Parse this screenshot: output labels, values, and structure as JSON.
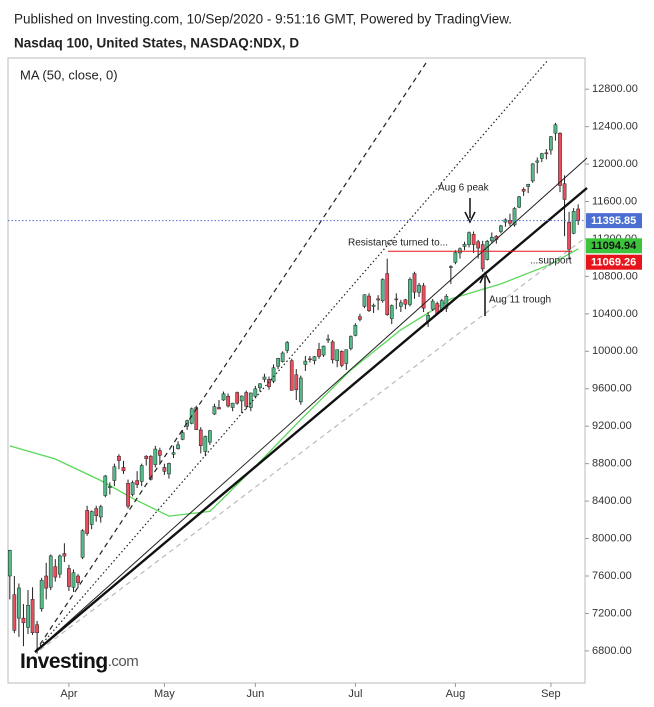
{
  "chart_data": {
    "type": "candlestick",
    "published": "Published on Investing.com, 10/Sep/2020 - 9:51:16 GMT, Powered by TradingView.",
    "title": "Nasdaq 100, United States, NASDAQ:NDX, D",
    "logo_main": "Investing",
    "logo_suffix": ".com",
    "up_color": "#53b987",
    "down_color": "#eb4d5c",
    "xlim": [
      -0.4,
      126.5
    ],
    "xticks": [
      {
        "value": 13,
        "label": "Apr"
      },
      {
        "value": 34,
        "label": "May"
      },
      {
        "value": 54,
        "label": "Jun"
      },
      {
        "value": 76,
        "label": "Jul"
      },
      {
        "value": 98,
        "label": "Aug"
      },
      {
        "value": 119,
        "label": "Sep"
      }
    ],
    "ylim": [
      6457,
      13133
    ],
    "yticks": [
      {
        "value": 6800,
        "label": "6800.00"
      },
      {
        "value": 7200,
        "label": "7200.00"
      },
      {
        "value": 7600,
        "label": "7600.00"
      },
      {
        "value": 8000,
        "label": "8000.00"
      },
      {
        "value": 8400,
        "label": "8400.00"
      },
      {
        "value": 8800,
        "label": "8800.00"
      },
      {
        "value": 9200,
        "label": "9200.00"
      },
      {
        "value": 9600,
        "label": "9600.00"
      },
      {
        "value": 10000,
        "label": "10000.00"
      },
      {
        "value": 10400,
        "label": "10400.00"
      },
      {
        "value": 10800,
        "label": "10800.00"
      },
      {
        "value": 11200,
        "label": "11200.00"
      },
      {
        "value": 11600,
        "label": "11600.00"
      },
      {
        "value": 12000,
        "label": "12000.00"
      },
      {
        "value": 12400,
        "label": "12400.00"
      },
      {
        "value": 12800,
        "label": "12800.00"
      }
    ],
    "ohlc": [
      [
        7600,
        7880,
        7350,
        7875
      ],
      [
        7400,
        7600,
        6990,
        7020
      ],
      [
        7150,
        7520,
        6950,
        7472
      ],
      [
        7150,
        7300,
        6850,
        7100
      ],
      [
        7050,
        7450,
        6980,
        7288
      ],
      [
        7350,
        7480,
        6970,
        6994
      ],
      [
        7080,
        7120,
        6771,
        6994
      ],
      [
        7250,
        7580,
        7220,
        7553
      ],
      [
        7600,
        7740,
        7350,
        7470
      ],
      [
        7480,
        7830,
        7450,
        7815
      ],
      [
        7700,
        7780,
        7540,
        7588
      ],
      [
        7620,
        7830,
        7580,
        7814
      ],
      [
        7840,
        7950,
        7750,
        7813
      ],
      [
        7680,
        7720,
        7440,
        7487
      ],
      [
        7480,
        7670,
        7430,
        7635
      ],
      [
        7600,
        7620,
        7470,
        7528
      ],
      [
        7800,
        8100,
        7780,
        8084
      ],
      [
        8300,
        8350,
        8030,
        8054
      ],
      [
        8150,
        8300,
        8100,
        8289
      ],
      [
        8320,
        8350,
        8180,
        8243
      ],
      [
        8230,
        8360,
        8170,
        8341
      ],
      [
        8460,
        8680,
        8440,
        8668
      ],
      [
        8550,
        8600,
        8470,
        8555
      ],
      [
        8620,
        8800,
        8560,
        8767
      ],
      [
        8880,
        8900,
        8740,
        8833
      ],
      [
        8760,
        8830,
        8690,
        8723
      ],
      [
        8590,
        8630,
        8320,
        8345
      ],
      [
        8470,
        8620,
        8450,
        8598
      ],
      [
        8620,
        8720,
        8540,
        8577
      ],
      [
        8610,
        8800,
        8560,
        8780
      ],
      [
        8880,
        8890,
        8780,
        8853
      ],
      [
        8880,
        8890,
        8620,
        8633
      ],
      [
        8790,
        8990,
        8760,
        8956
      ],
      [
        8940,
        8970,
        8800,
        8889
      ],
      [
        8760,
        8800,
        8680,
        8718
      ],
      [
        8690,
        8810,
        8640,
        8803
      ],
      [
        8900,
        8990,
        8860,
        8918
      ],
      [
        8960,
        9040,
        8950,
        9001
      ],
      [
        9060,
        9160,
        9050,
        9131
      ],
      [
        9200,
        9270,
        9160,
        9259
      ],
      [
        9230,
        9400,
        9220,
        9386
      ],
      [
        9400,
        9420,
        9160,
        9163
      ],
      [
        9160,
        9190,
        8910,
        8991
      ],
      [
        8930,
        9100,
        8880,
        9091
      ],
      [
        9030,
        9160,
        9000,
        9152
      ],
      [
        9330,
        9440,
        9320,
        9410
      ],
      [
        9400,
        9480,
        9380,
        9384
      ],
      [
        9480,
        9570,
        9470,
        9546
      ],
      [
        9520,
        9550,
        9400,
        9415
      ],
      [
        9400,
        9450,
        9360,
        9446
      ],
      [
        9560,
        9570,
        9430,
        9446
      ],
      [
        9470,
        9530,
        9340,
        9522
      ],
      [
        9560,
        9580,
        9380,
        9413
      ],
      [
        9400,
        9560,
        9360,
        9555
      ],
      [
        9520,
        9630,
        9510,
        9599
      ],
      [
        9610,
        9660,
        9570,
        9653
      ],
      [
        9700,
        9760,
        9670,
        9725
      ],
      [
        9700,
        9730,
        9590,
        9621
      ],
      [
        9680,
        9860,
        9660,
        9824
      ],
      [
        9840,
        9930,
        9810,
        9925
      ],
      [
        9890,
        10000,
        9880,
        9982
      ],
      [
        10010,
        10110,
        9980,
        10094
      ],
      [
        9900,
        9920,
        9580,
        9582
      ],
      [
        9750,
        9810,
        9480,
        9589
      ],
      [
        9460,
        9740,
        9430,
        9715
      ],
      [
        9860,
        9950,
        9790,
        9895
      ],
      [
        9920,
        9950,
        9880,
        9910
      ],
      [
        9900,
        9950,
        9860,
        9943
      ],
      [
        10020,
        10090,
        9920,
        9946
      ],
      [
        9960,
        10060,
        9940,
        10056
      ],
      [
        10120,
        10180,
        10090,
        10131
      ],
      [
        10100,
        10120,
        9870,
        9909
      ],
      [
        9900,
        10020,
        9830,
        10017
      ],
      [
        10000,
        10010,
        9830,
        9849
      ],
      [
        9870,
        10020,
        9800,
        10017
      ],
      [
        10030,
        10170,
        10010,
        10157
      ],
      [
        10170,
        10300,
        10160,
        10279
      ],
      [
        10370,
        10400,
        10320,
        10341
      ],
      [
        10480,
        10610,
        10460,
        10604
      ],
      [
        10590,
        10620,
        10420,
        10433
      ],
      [
        10480,
        10510,
        10410,
        10493
      ],
      [
        10560,
        10600,
        10440,
        10548
      ],
      [
        10540,
        10780,
        10520,
        10767
      ],
      [
        10830,
        10990,
        10380,
        10391
      ],
      [
        10350,
        10500,
        10290,
        10488
      ],
      [
        10560,
        10620,
        10450,
        10550
      ],
      [
        10480,
        10550,
        10420,
        10519
      ],
      [
        10550,
        10560,
        10450,
        10503
      ],
      [
        10500,
        10790,
        10480,
        10768
      ],
      [
        10830,
        10850,
        10560,
        10632
      ],
      [
        10630,
        10730,
        10580,
        10706
      ],
      [
        10700,
        10730,
        10420,
        10461
      ],
      [
        10320,
        10420,
        10260,
        10383
      ],
      [
        10450,
        10560,
        10430,
        10536
      ],
      [
        10510,
        10530,
        10390,
        10402
      ],
      [
        10440,
        10560,
        10420,
        10542
      ],
      [
        10460,
        10610,
        10420,
        10587
      ],
      [
        10900,
        10920,
        10720,
        10905
      ],
      [
        10950,
        11080,
        10930,
        11056
      ],
      [
        11050,
        11110,
        10990,
        11095
      ],
      [
        11120,
        11170,
        11080,
        11142
      ],
      [
        11140,
        11280,
        11110,
        11267
      ],
      [
        11250,
        11280,
        11050,
        11139
      ],
      [
        11170,
        11190,
        10990,
        11103
      ],
      [
        11140,
        11180,
        10850,
        10880
      ],
      [
        10980,
        11190,
        10970,
        11176
      ],
      [
        11180,
        11270,
        11160,
        11219
      ],
      [
        11230,
        11240,
        11150,
        11195
      ],
      [
        11280,
        11350,
        11260,
        11340
      ],
      [
        11380,
        11420,
        11330,
        11404
      ],
      [
        11400,
        11470,
        11340,
        11368
      ],
      [
        11350,
        11540,
        11330,
        11525
      ],
      [
        11540,
        11660,
        11530,
        11650
      ],
      [
        11730,
        11750,
        11660,
        11710
      ],
      [
        11760,
        11790,
        11690,
        11784
      ],
      [
        11820,
        12010,
        11800,
        12002
      ],
      [
        12020,
        12070,
        11900,
        12034
      ],
      [
        12060,
        12120,
        12020,
        12111
      ],
      [
        12120,
        12160,
        12050,
        12110
      ],
      [
        12150,
        12300,
        12100,
        12292
      ],
      [
        12330,
        12440,
        12250,
        12420
      ],
      [
        12330,
        12340,
        11700,
        11771
      ],
      [
        11790,
        11880,
        11230,
        11622
      ],
      [
        11380,
        11490,
        10980,
        11090
      ],
      [
        11260,
        11530,
        11250,
        11495
      ],
      [
        11520,
        11570,
        11350,
        11396
      ]
    ],
    "ma": {
      "name": "MA (50, close, 0)",
      "color": "#5ad85a",
      "x": [
        0,
        10,
        20,
        27,
        35,
        44,
        53,
        64,
        75,
        86,
        97,
        108,
        119,
        125
      ],
      "values": [
        8990,
        8850,
        8620,
        8430,
        8240,
        8290,
        8720,
        9270,
        9800,
        10230,
        10560,
        10720,
        10930,
        11095
      ]
    },
    "price_tags": [
      {
        "value": 11395.85,
        "color": "#4a6fd1"
      },
      {
        "value": 11094.94,
        "color": "#3cc43c"
      },
      {
        "value": 11069.26,
        "color": "#e8141c"
      }
    ],
    "annotations": [
      "Aug 6 peak",
      "Resistance turned to...",
      "...support",
      "Aug 11 trough"
    ]
  }
}
